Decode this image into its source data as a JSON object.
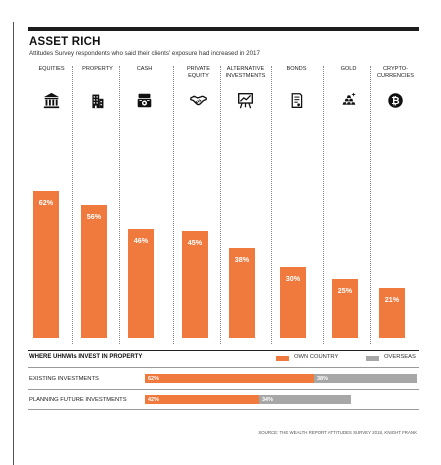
{
  "header": {
    "title": "ASSET RICH",
    "subtitle": "Attitudes Survey respondents who said their clients' exposure had increased in 2017"
  },
  "chart_data": [
    {
      "type": "bar",
      "title": "ASSET RICH",
      "subtitle": "Attitudes Survey respondents who said their clients' exposure had increased in 2017",
      "categories": [
        "EQUITIES",
        "PROPERTY",
        "CASH",
        "PRIVATE\nEQUITY",
        "ALTERNATIVE\nINVESTMENTS",
        "BONDS",
        "GOLD",
        "CRYPTO-\nCURRENCIES"
      ],
      "icons": [
        "bank-icon",
        "building-icon",
        "cash-register-icon",
        "handshake-icon",
        "easel-chart-icon",
        "document-icon",
        "gold-bars-icon",
        "bitcoin-icon"
      ],
      "values": [
        62,
        56,
        46,
        45,
        38,
        30,
        25,
        21
      ],
      "value_labels": [
        "62%",
        "56%",
        "46%",
        "45%",
        "38%",
        "30%",
        "25%",
        "21%"
      ],
      "ylim": [
        0,
        100
      ],
      "colors": {
        "bar": "#f07a3d",
        "background": "#ffffff",
        "panel": "#ececec"
      }
    },
    {
      "type": "bar",
      "orientation": "horizontal",
      "stacked": true,
      "title": "WHERE UHNWIs INVEST IN PROPERTY",
      "categories": [
        "EXISTING INVESTMENTS",
        "PLANNING FUTURE INVESTMENTS"
      ],
      "series": [
        {
          "name": "OWN COUNTRY",
          "values": [
            62,
            42
          ],
          "labels": [
            "62%",
            "42%"
          ],
          "color": "#f07a3d"
        },
        {
          "name": "OVERSEAS",
          "values": [
            38,
            34
          ],
          "labels": [
            "38%",
            "34%"
          ],
          "color": "#a7a7a7"
        }
      ],
      "xlim": [
        0,
        100
      ]
    }
  ],
  "source": "SOURCE: THE WEALTH REPORT ATTITUDES SURVEY 2018, KNIGHT FRANK"
}
